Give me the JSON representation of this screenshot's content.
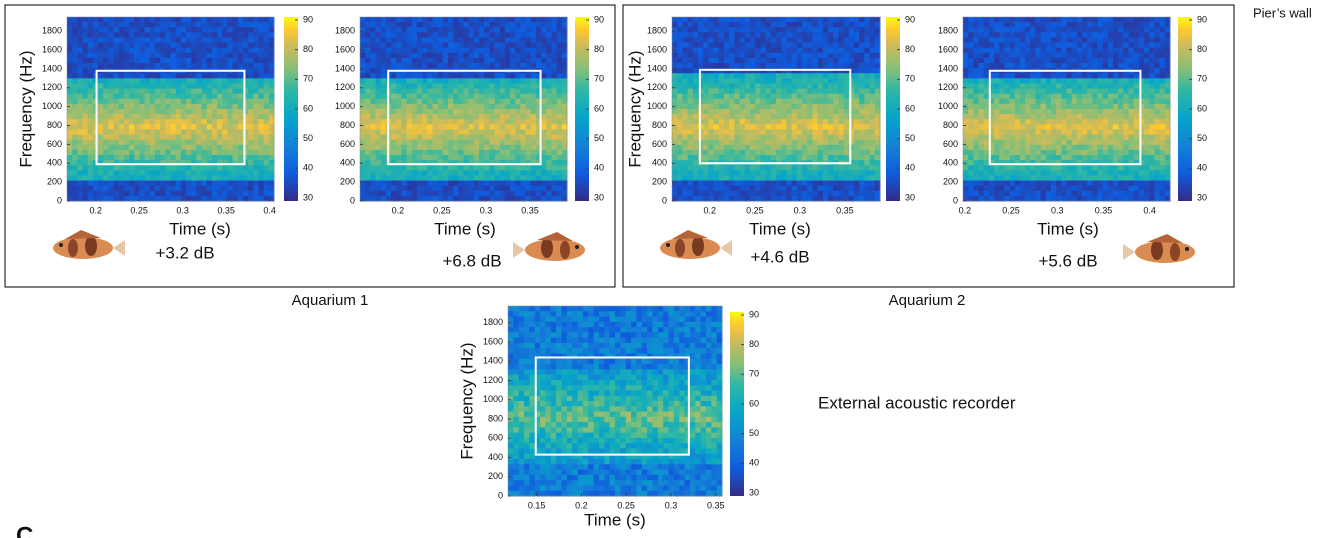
{
  "chart_data": [
    {
      "type": "spectrogram",
      "xlabel": "Time (s)",
      "ylabel": "Frequency (Hz)",
      "annotation": "+3.2 dB",
      "xlim": [
        0.167,
        0.405
      ],
      "xticks": [
        0.2,
        0.25,
        0.3,
        0.35,
        0.4
      ],
      "ylim": [
        0,
        1950
      ],
      "yticks": [
        0,
        200,
        400,
        600,
        800,
        1000,
        1200,
        1400,
        1600,
        1800
      ],
      "clim": [
        29,
        91
      ],
      "cticks": [
        30,
        40,
        50,
        60,
        70,
        80,
        90
      ],
      "box": {
        "x": [
          0.201,
          0.371
        ],
        "y": [
          390,
          1380
        ]
      }
    },
    {
      "type": "spectrogram",
      "xlabel": "Time (s)",
      "annotation": "+6.8 dB",
      "xlim": [
        0.157,
        0.392
      ],
      "xticks": [
        0.2,
        0.25,
        0.3,
        0.35
      ],
      "ylim": [
        0,
        1950
      ],
      "yticks": [
        0,
        200,
        400,
        600,
        800,
        1000,
        1200,
        1400,
        1600,
        1800
      ],
      "clim": [
        29,
        91
      ],
      "cticks": [
        30,
        40,
        50,
        60,
        70,
        80,
        90
      ],
      "box": {
        "x": [
          0.189,
          0.362
        ],
        "y": [
          390,
          1380
        ]
      }
    },
    {
      "type": "spectrogram",
      "xlabel": "Time (s)",
      "ylabel": "Frequency (Hz)",
      "annotation": "+4.6 dB",
      "xlim": [
        0.158,
        0.389
      ],
      "xticks": [
        0.2,
        0.25,
        0.3,
        0.35
      ],
      "ylim": [
        0,
        1950
      ],
      "yticks": [
        0,
        200,
        400,
        600,
        800,
        1000,
        1200,
        1400,
        1600,
        1800
      ],
      "clim": [
        29,
        91
      ],
      "cticks": [
        30,
        40,
        50,
        60,
        70,
        80,
        90
      ],
      "box": {
        "x": [
          0.189,
          0.356
        ],
        "y": [
          400,
          1390
        ]
      }
    },
    {
      "type": "spectrogram",
      "xlabel": "Time (s)",
      "annotation": "+5.6 dB",
      "xlim": [
        0.198,
        0.422
      ],
      "xticks": [
        0.2,
        0.25,
        0.3,
        0.35,
        0.4
      ],
      "ylim": [
        0,
        1950
      ],
      "yticks": [
        0,
        200,
        400,
        600,
        800,
        1000,
        1200,
        1400,
        1600,
        1800
      ],
      "clim": [
        29,
        91
      ],
      "cticks": [
        30,
        40,
        50,
        60,
        70,
        80,
        90
      ],
      "box": {
        "x": [
          0.227,
          0.39
        ],
        "y": [
          390,
          1380
        ]
      }
    },
    {
      "type": "spectrogram",
      "xlabel": "Time (s)",
      "ylabel": "Frequency (Hz)",
      "xlim": [
        0.118,
        0.357
      ],
      "xticks": [
        0.15,
        0.2,
        0.25,
        0.3,
        0.35
      ],
      "ylim": [
        0,
        1975
      ],
      "yticks": [
        0,
        200,
        400,
        600,
        800,
        1000,
        1200,
        1400,
        1600,
        1800
      ],
      "clim": [
        29,
        91
      ],
      "cticks": [
        30,
        40,
        50,
        60,
        70,
        80,
        90
      ],
      "box": {
        "x": [
          0.149,
          0.32
        ],
        "y": [
          430,
          1440
        ]
      }
    }
  ],
  "labels": {
    "aquarium_1": "Aquarium 1",
    "aquarium_2": "Aquarium 2",
    "pier": "Pier’s wall",
    "external": "External acoustic recorder",
    "panel": "C"
  }
}
